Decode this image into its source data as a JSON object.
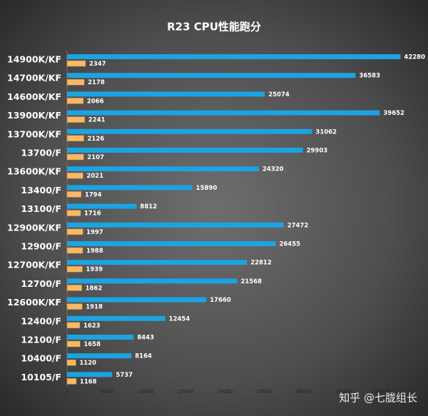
{
  "chart_data": {
    "type": "hbar",
    "title": "R23 CPU性能跑分",
    "categories": [
      "14900K/KF",
      "14700K/KF",
      "14600K/KF",
      "13900K/KF",
      "13700K/KF",
      "13700/F",
      "13600K/KF",
      "13400/F",
      "13100/F",
      "12900K/KF",
      "12900/F",
      "12700K/KF",
      "12700/F",
      "12600K/KF",
      "12400/F",
      "12100/F",
      "10400/F",
      "10105/F"
    ],
    "series": [
      {
        "color": "#1ba4e2",
        "values": [
          42280,
          36583,
          25074,
          39652,
          31062,
          29903,
          24320,
          15890,
          8812,
          27472,
          26455,
          22812,
          21568,
          17660,
          12454,
          8443,
          8164,
          5737
        ]
      },
      {
        "color": "#f8b865",
        "values": [
          2347,
          2178,
          2066,
          2241,
          2126,
          2107,
          2021,
          1794,
          1716,
          1997,
          1988,
          1939,
          1862,
          1918,
          1623,
          1658,
          1120,
          1168
        ]
      }
    ],
    "xlim": [
      0,
      45000
    ],
    "xticks": [
      0,
      5000,
      10000,
      15000,
      20000,
      25000,
      30000,
      35000,
      40000
    ],
    "watermark": "知乎 @七胧组长"
  }
}
